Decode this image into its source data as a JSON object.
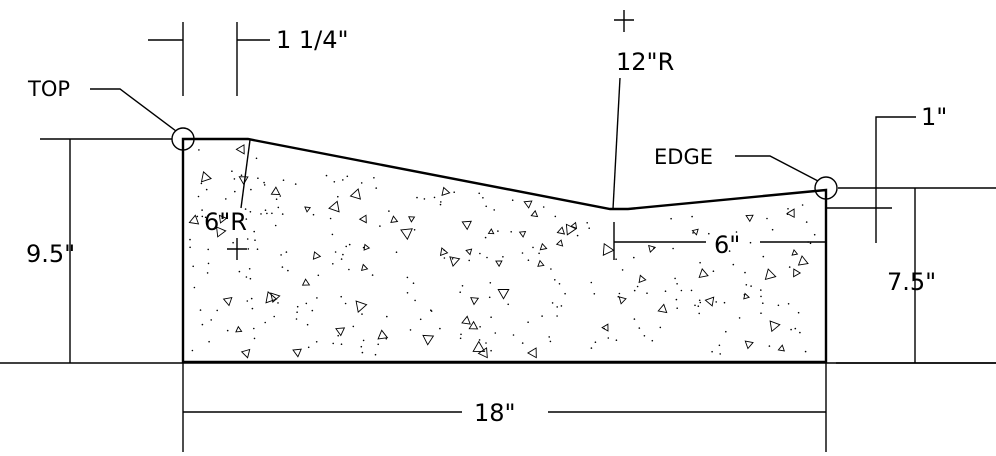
{
  "drawing": {
    "labels": {
      "top": "TOP",
      "edge": "EDGE"
    },
    "dimensions": {
      "offset_top": "1 1/4\"",
      "radius_large": "12\"R",
      "radius_small": "6\"R",
      "height_left": "9.5\"",
      "height_right": "7.5\"",
      "drop_edge": "1\"",
      "flat_right": "6\"",
      "width": "18\""
    },
    "fill_pattern": "concrete-aggregate"
  }
}
